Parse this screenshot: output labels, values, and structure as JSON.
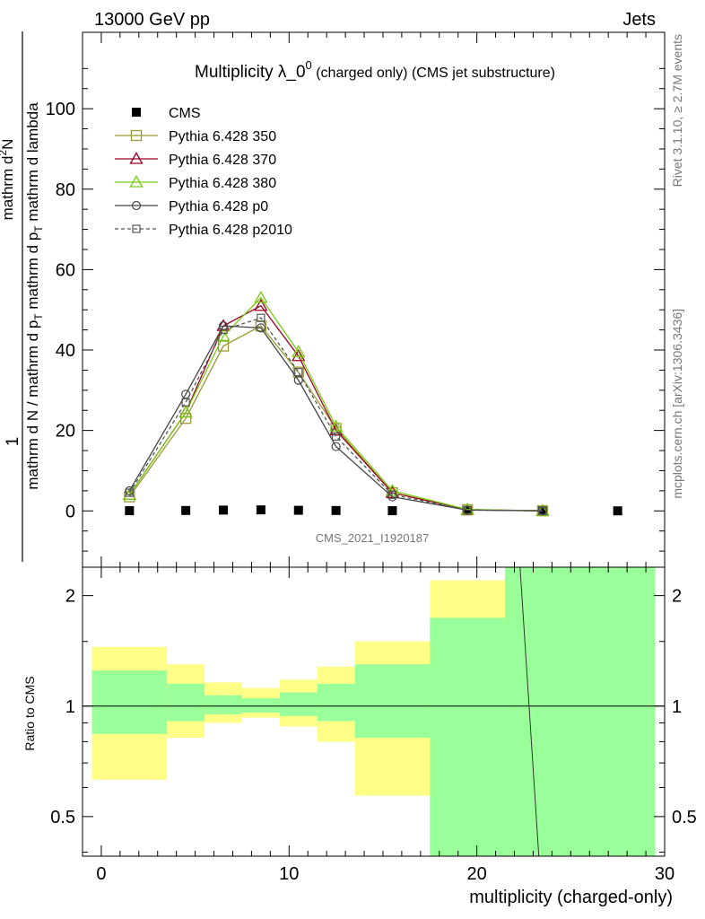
{
  "header": {
    "left": "13000 GeV pp",
    "right": "Jets"
  },
  "side_right_top": "Rivet 3.1.10, ≥ 2.7M events",
  "side_right_bottom": "mcplots.cern.ch [arXiv:1306.3436]",
  "watermark": "CMS_2021_I1920187",
  "chart_data": [
    {
      "type": "line",
      "title_main": "Multiplicity λ_0",
      "title_sup": "0",
      "title_small": " (charged only) (CMS jet substructure)",
      "ylabel_num": "1",
      "ylabel_den_lines": [
        "mathrm d N / mathrm d p",
        "mathrm d N"
      ],
      "ylabel_den": "mathrm d N / mathrm d p",
      "ylabel_den_sub": "T",
      "ylabel_den_rest": " mathrm d p",
      "ylabel_den_sub2": "T",
      "ylabel_den_end": " mathrm d lambda",
      "ylabel_num2": "mathrm d",
      "ylabel_num2_sup": "2",
      "ylabel_num2_end": "N",
      "xlim": [
        -1,
        30
      ],
      "ylim": [
        -14,
        119
      ],
      "yticks": [
        0,
        20,
        40,
        60,
        80,
        100
      ],
      "x": [
        1.5,
        4.5,
        6.5,
        8.5,
        10.5,
        12.5,
        15.5,
        19.5,
        23.5,
        27.5
      ],
      "series": [
        {
          "name": "CMS",
          "color": "#000000",
          "marker": "square-filled",
          "line": "none",
          "values": [
            0.05,
            0.1,
            0.2,
            0.25,
            0.15,
            0.1,
            0.05,
            0.02,
            0.01,
            0.01
          ]
        },
        {
          "name": "Pythia 6.428 350",
          "color": "#999933",
          "marker": "square-open",
          "line": "solid",
          "values": [
            3.5,
            23,
            41,
            46,
            34.5,
            20.5,
            4.5,
            0.3,
            0.02,
            null
          ]
        },
        {
          "name": "Pythia 6.428 370",
          "color": "#990022",
          "marker": "triangle-open",
          "line": "solid",
          "values": [
            4,
            24.5,
            46,
            51,
            38.5,
            20,
            4.5,
            0.3,
            0.02,
            null
          ]
        },
        {
          "name": "Pythia 6.428 380",
          "color": "#77cc11",
          "marker": "triangle-open",
          "line": "solid",
          "values": [
            4,
            24.5,
            43.5,
            53,
            39.5,
            21,
            5,
            0.35,
            0.02,
            null
          ]
        },
        {
          "name": "Pythia 6.428 p0",
          "color": "#444444",
          "marker": "circle-open",
          "line": "solid",
          "values": [
            5,
            29,
            46,
            45.5,
            32.5,
            16,
            3.5,
            0.2,
            0.02,
            null
          ]
        },
        {
          "name": "Pythia 6.428 p2010",
          "color": "#555555",
          "marker": "square-open-small",
          "line": "dashed",
          "values": [
            4.5,
            27,
            45,
            48,
            34.5,
            18.5,
            4,
            0.25,
            0.02,
            null
          ]
        }
      ]
    },
    {
      "type": "area",
      "ylabel": "Ratio to CMS",
      "xlabel": "multiplicity (charged-only)",
      "xlim": [
        -1,
        30
      ],
      "ylim": [
        0.39,
        2.39
      ],
      "yscale": "log",
      "xticks": [
        0,
        10,
        20,
        30
      ],
      "yticks": [
        0.5,
        1,
        2
      ],
      "bins": [
        {
          "lo": -0.5,
          "hi": 3.5,
          "green": [
            0.84,
            1.25
          ],
          "yellow": [
            0.63,
            1.45
          ]
        },
        {
          "lo": 3.5,
          "hi": 5.5,
          "green": [
            0.91,
            1.15
          ],
          "yellow": [
            0.82,
            1.3
          ]
        },
        {
          "lo": 5.5,
          "hi": 7.5,
          "green": [
            0.95,
            1.07
          ],
          "yellow": [
            0.9,
            1.16
          ]
        },
        {
          "lo": 7.5,
          "hi": 9.5,
          "green": [
            0.96,
            1.05
          ],
          "yellow": [
            0.93,
            1.12
          ]
        },
        {
          "lo": 9.5,
          "hi": 11.5,
          "green": [
            0.94,
            1.09
          ],
          "yellow": [
            0.88,
            1.18
          ]
        },
        {
          "lo": 11.5,
          "hi": 13.5,
          "green": [
            0.91,
            1.15
          ],
          "yellow": [
            0.8,
            1.28
          ]
        },
        {
          "lo": 13.5,
          "hi": 17.5,
          "green": [
            0.82,
            1.3
          ],
          "yellow": [
            0.57,
            1.5
          ]
        },
        {
          "lo": 17.5,
          "hi": 21.5,
          "green": [
            0.39,
            1.74
          ],
          "yellow": [
            0.39,
            2.2
          ]
        },
        {
          "lo": 21.5,
          "hi": 29.5,
          "green": [
            0.39,
            2.39
          ],
          "yellow": [
            0.39,
            2.39
          ]
        }
      ],
      "mc_line": {
        "x": [
          22.3,
          23.3
        ],
        "y": [
          2.39,
          0.39
        ]
      }
    }
  ]
}
